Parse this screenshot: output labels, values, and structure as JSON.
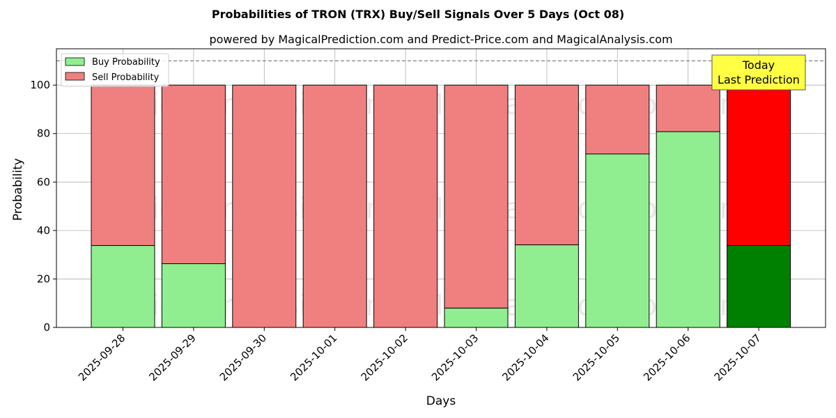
{
  "chart_data": {
    "type": "bar",
    "stacked": true,
    "title": "Probabilities of TRON (TRX) Buy/Sell Signals Over 5 Days (Oct 08)",
    "subtitle": "powered by MagicalPrediction.com and Predict-Price.com and MagicalAnalysis.com",
    "xlabel": "Days",
    "ylabel": "Probability",
    "ylim": [
      0,
      115
    ],
    "yticks": [
      0,
      20,
      40,
      60,
      80,
      100
    ],
    "grid": true,
    "legend_position": "top-left",
    "categories": [
      "2025-09-28",
      "2025-09-29",
      "2025-09-30",
      "2025-10-01",
      "2025-10-02",
      "2025-10-03",
      "2025-10-04",
      "2025-10-05",
      "2025-10-06",
      "2025-10-07"
    ],
    "series": [
      {
        "name": "Buy Probability",
        "values": [
          33.8,
          26.3,
          0,
          0,
          0,
          8.0,
          34.1,
          71.6,
          80.8,
          33.8
        ]
      },
      {
        "name": "Sell Probability",
        "values": [
          66.2,
          73.7,
          100,
          100,
          100,
          92.0,
          65.9,
          28.4,
          19.2,
          66.2
        ]
      }
    ],
    "colors": {
      "buy": "#90ee90",
      "sell": "#f08080",
      "buy_highlight": "#008000",
      "sell_highlight": "#ff0000",
      "annotation_bg": "#ffff44"
    },
    "highlight_index": 9,
    "reference_line": 110,
    "annotation": {
      "line1": "Today",
      "line2": "Last Prediction"
    },
    "watermarks": [
      "MagicalAnalysis.com",
      "MagicalPrediction.com"
    ]
  }
}
